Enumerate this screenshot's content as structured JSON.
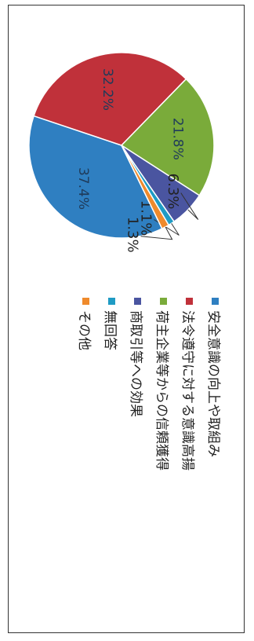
{
  "chart_data": {
    "type": "pie",
    "slices": [
      {
        "label": "安全意識の向上や取組み",
        "value": 37.4,
        "value_label": "37.4%",
        "color": "#2f7fc1"
      },
      {
        "label": "法令遵守に対する意識高揚",
        "value": 32.2,
        "value_label": "32.2%",
        "color": "#c0313a"
      },
      {
        "label": "荷主企業等からの信頼獲得",
        "value": 21.8,
        "value_label": "21.8%",
        "color": "#7aab3a"
      },
      {
        "label": "商取引等への効果",
        "value": 6.3,
        "value_label": "6.3%",
        "color": "#4a55a0"
      },
      {
        "label": "無回答",
        "value": 1.1,
        "value_label": "1.1%",
        "color": "#1f9bc4"
      },
      {
        "label": "その他",
        "value": 1.3,
        "value_label": "1.3%",
        "color": "#ef8a2c"
      }
    ],
    "legend_placement": "right"
  }
}
